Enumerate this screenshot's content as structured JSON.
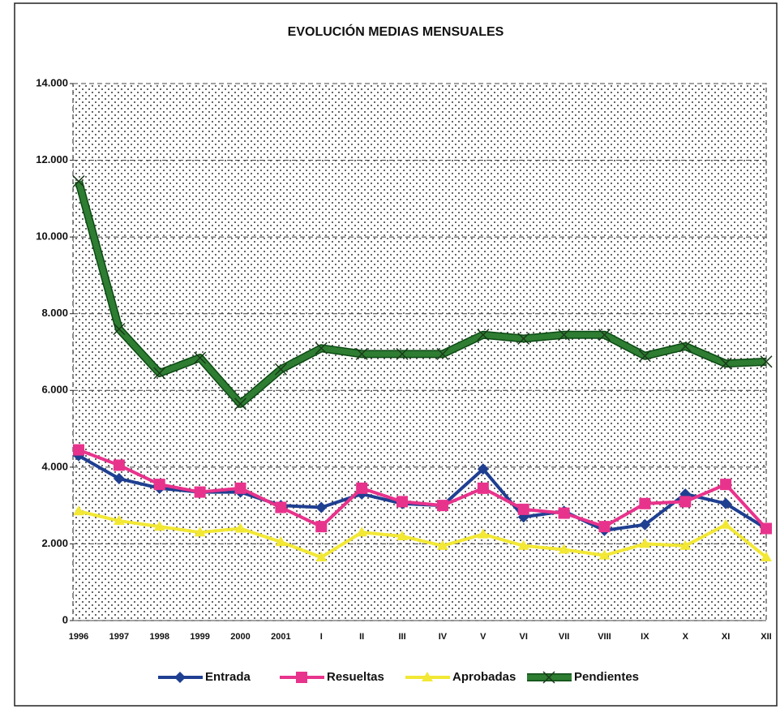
{
  "chart_data": {
    "type": "line",
    "title": "EVOLUCIÓN MEDIAS MENSUALES",
    "categories": [
      "1996",
      "1997",
      "1998",
      "1999",
      "2000",
      "2001",
      "I",
      "II",
      "III",
      "IV",
      "V",
      "VI",
      "VII",
      "VIII",
      "IX",
      "X",
      "XI",
      "XII"
    ],
    "series": [
      {
        "name": "Entrada",
        "color": "#1f3f91",
        "marker": "diamond",
        "values": [
          4300,
          3700,
          3450,
          3350,
          3350,
          3000,
          2950,
          3300,
          3050,
          3000,
          3950,
          2700,
          2850,
          2350,
          2500,
          3300,
          3050,
          2400
        ]
      },
      {
        "name": "Resueltas",
        "color": "#e8338c",
        "marker": "square",
        "values": [
          4450,
          4050,
          3550,
          3350,
          3450,
          2950,
          2450,
          3450,
          3100,
          3000,
          3450,
          2900,
          2800,
          2450,
          3050,
          3100,
          3550,
          2400
        ]
      },
      {
        "name": "Aprobadas",
        "color": "#f2e835",
        "marker": "triangle",
        "values": [
          2850,
          2600,
          2450,
          2300,
          2400,
          2050,
          1650,
          2300,
          2200,
          1950,
          2250,
          1950,
          1850,
          1700,
          2000,
          1950,
          2500,
          1650
        ]
      },
      {
        "name": "Pendientes",
        "color": "#2e7d32",
        "marker": "x",
        "values": [
          11450,
          7600,
          6450,
          6850,
          5650,
          6550,
          7100,
          6950,
          6950,
          6950,
          7450,
          7350,
          7450,
          7450,
          6900,
          7150,
          6700,
          6750
        ]
      }
    ],
    "ylim": [
      0,
      14000
    ],
    "yticks": [
      0,
      {
        "value": 2000,
        "label": "2.000"
      },
      {
        "value": 4000,
        "label": "4.000"
      },
      {
        "value": 6000,
        "label": "6.000"
      },
      {
        "value": 8000,
        "label": "8.000"
      },
      {
        "value": 10000,
        "label": "10.000"
      },
      {
        "value": 12000,
        "label": "12.000"
      },
      {
        "value": 14000,
        "label": "14.000"
      }
    ],
    "grid": true,
    "legend": "bottom"
  }
}
